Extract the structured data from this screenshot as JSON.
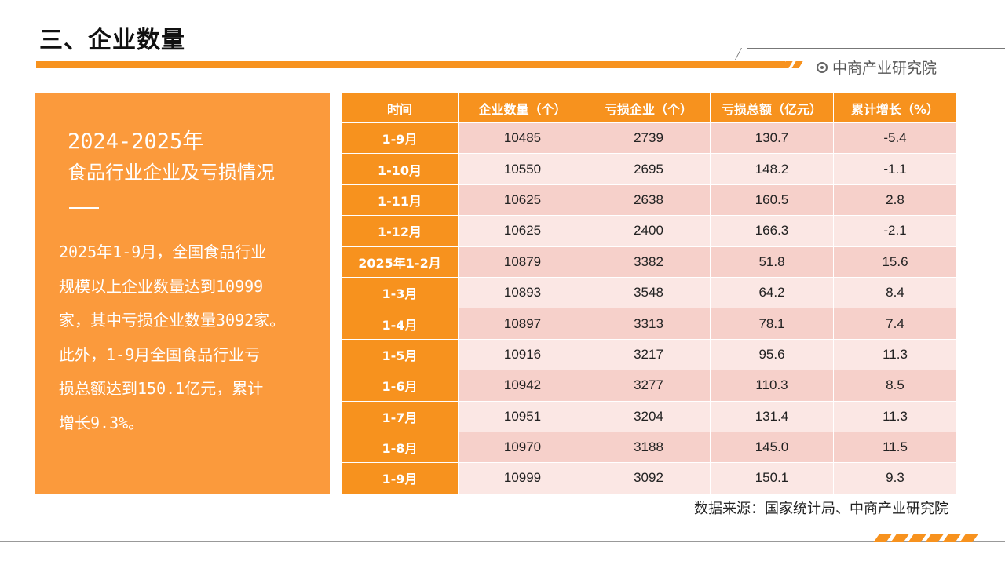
{
  "header": {
    "title": "三、企业数量",
    "brand": "中商产业研究院"
  },
  "panel": {
    "title_year": "2024-2025年",
    "title_topic": "食品行业企业及亏损情况",
    "body": "2025年1-9月，全国食品行业\n规模以上企业数量达到10999\n家，其中亏损企业数量3092家。\n此外，1-9月全国食品行业亏\n损总额达到150.1亿元，累计\n增长9.3%。"
  },
  "table": {
    "headers": [
      "时间",
      "企业数量（个）",
      "亏损企业（个）",
      "亏损总额（亿元）",
      "累计增长（%）"
    ],
    "rows": [
      [
        "1-9月",
        "10485",
        "2739",
        "130.7",
        "-5.4"
      ],
      [
        "1-10月",
        "10550",
        "2695",
        "148.2",
        "-1.1"
      ],
      [
        "1-11月",
        "10625",
        "2638",
        "160.5",
        "2.8"
      ],
      [
        "1-12月",
        "10625",
        "2400",
        "166.3",
        "-2.1"
      ],
      [
        "2025年1-2月",
        "10879",
        "3382",
        "51.8",
        "15.6"
      ],
      [
        "1-3月",
        "10893",
        "3548",
        "64.2",
        "8.4"
      ],
      [
        "1-4月",
        "10897",
        "3313",
        "78.1",
        "7.4"
      ],
      [
        "1-5月",
        "10916",
        "3217",
        "95.6",
        "11.3"
      ],
      [
        "1-6月",
        "10942",
        "3277",
        "110.3",
        "8.5"
      ],
      [
        "1-7月",
        "10951",
        "3204",
        "131.4",
        "11.3"
      ],
      [
        "1-8月",
        "10970",
        "3188",
        "145.0",
        "11.5"
      ],
      [
        "1-9月",
        "10999",
        "3092",
        "150.1",
        "9.3"
      ]
    ]
  },
  "source": "数据来源：国家统计局、中商产业研究院",
  "colors": {
    "accent": "#f7921e",
    "panel": "#fb9a3c",
    "row_odd": "#f6d0ca",
    "row_even": "#fbe7e4"
  },
  "icons": {
    "brand": "circle-dot-icon"
  }
}
